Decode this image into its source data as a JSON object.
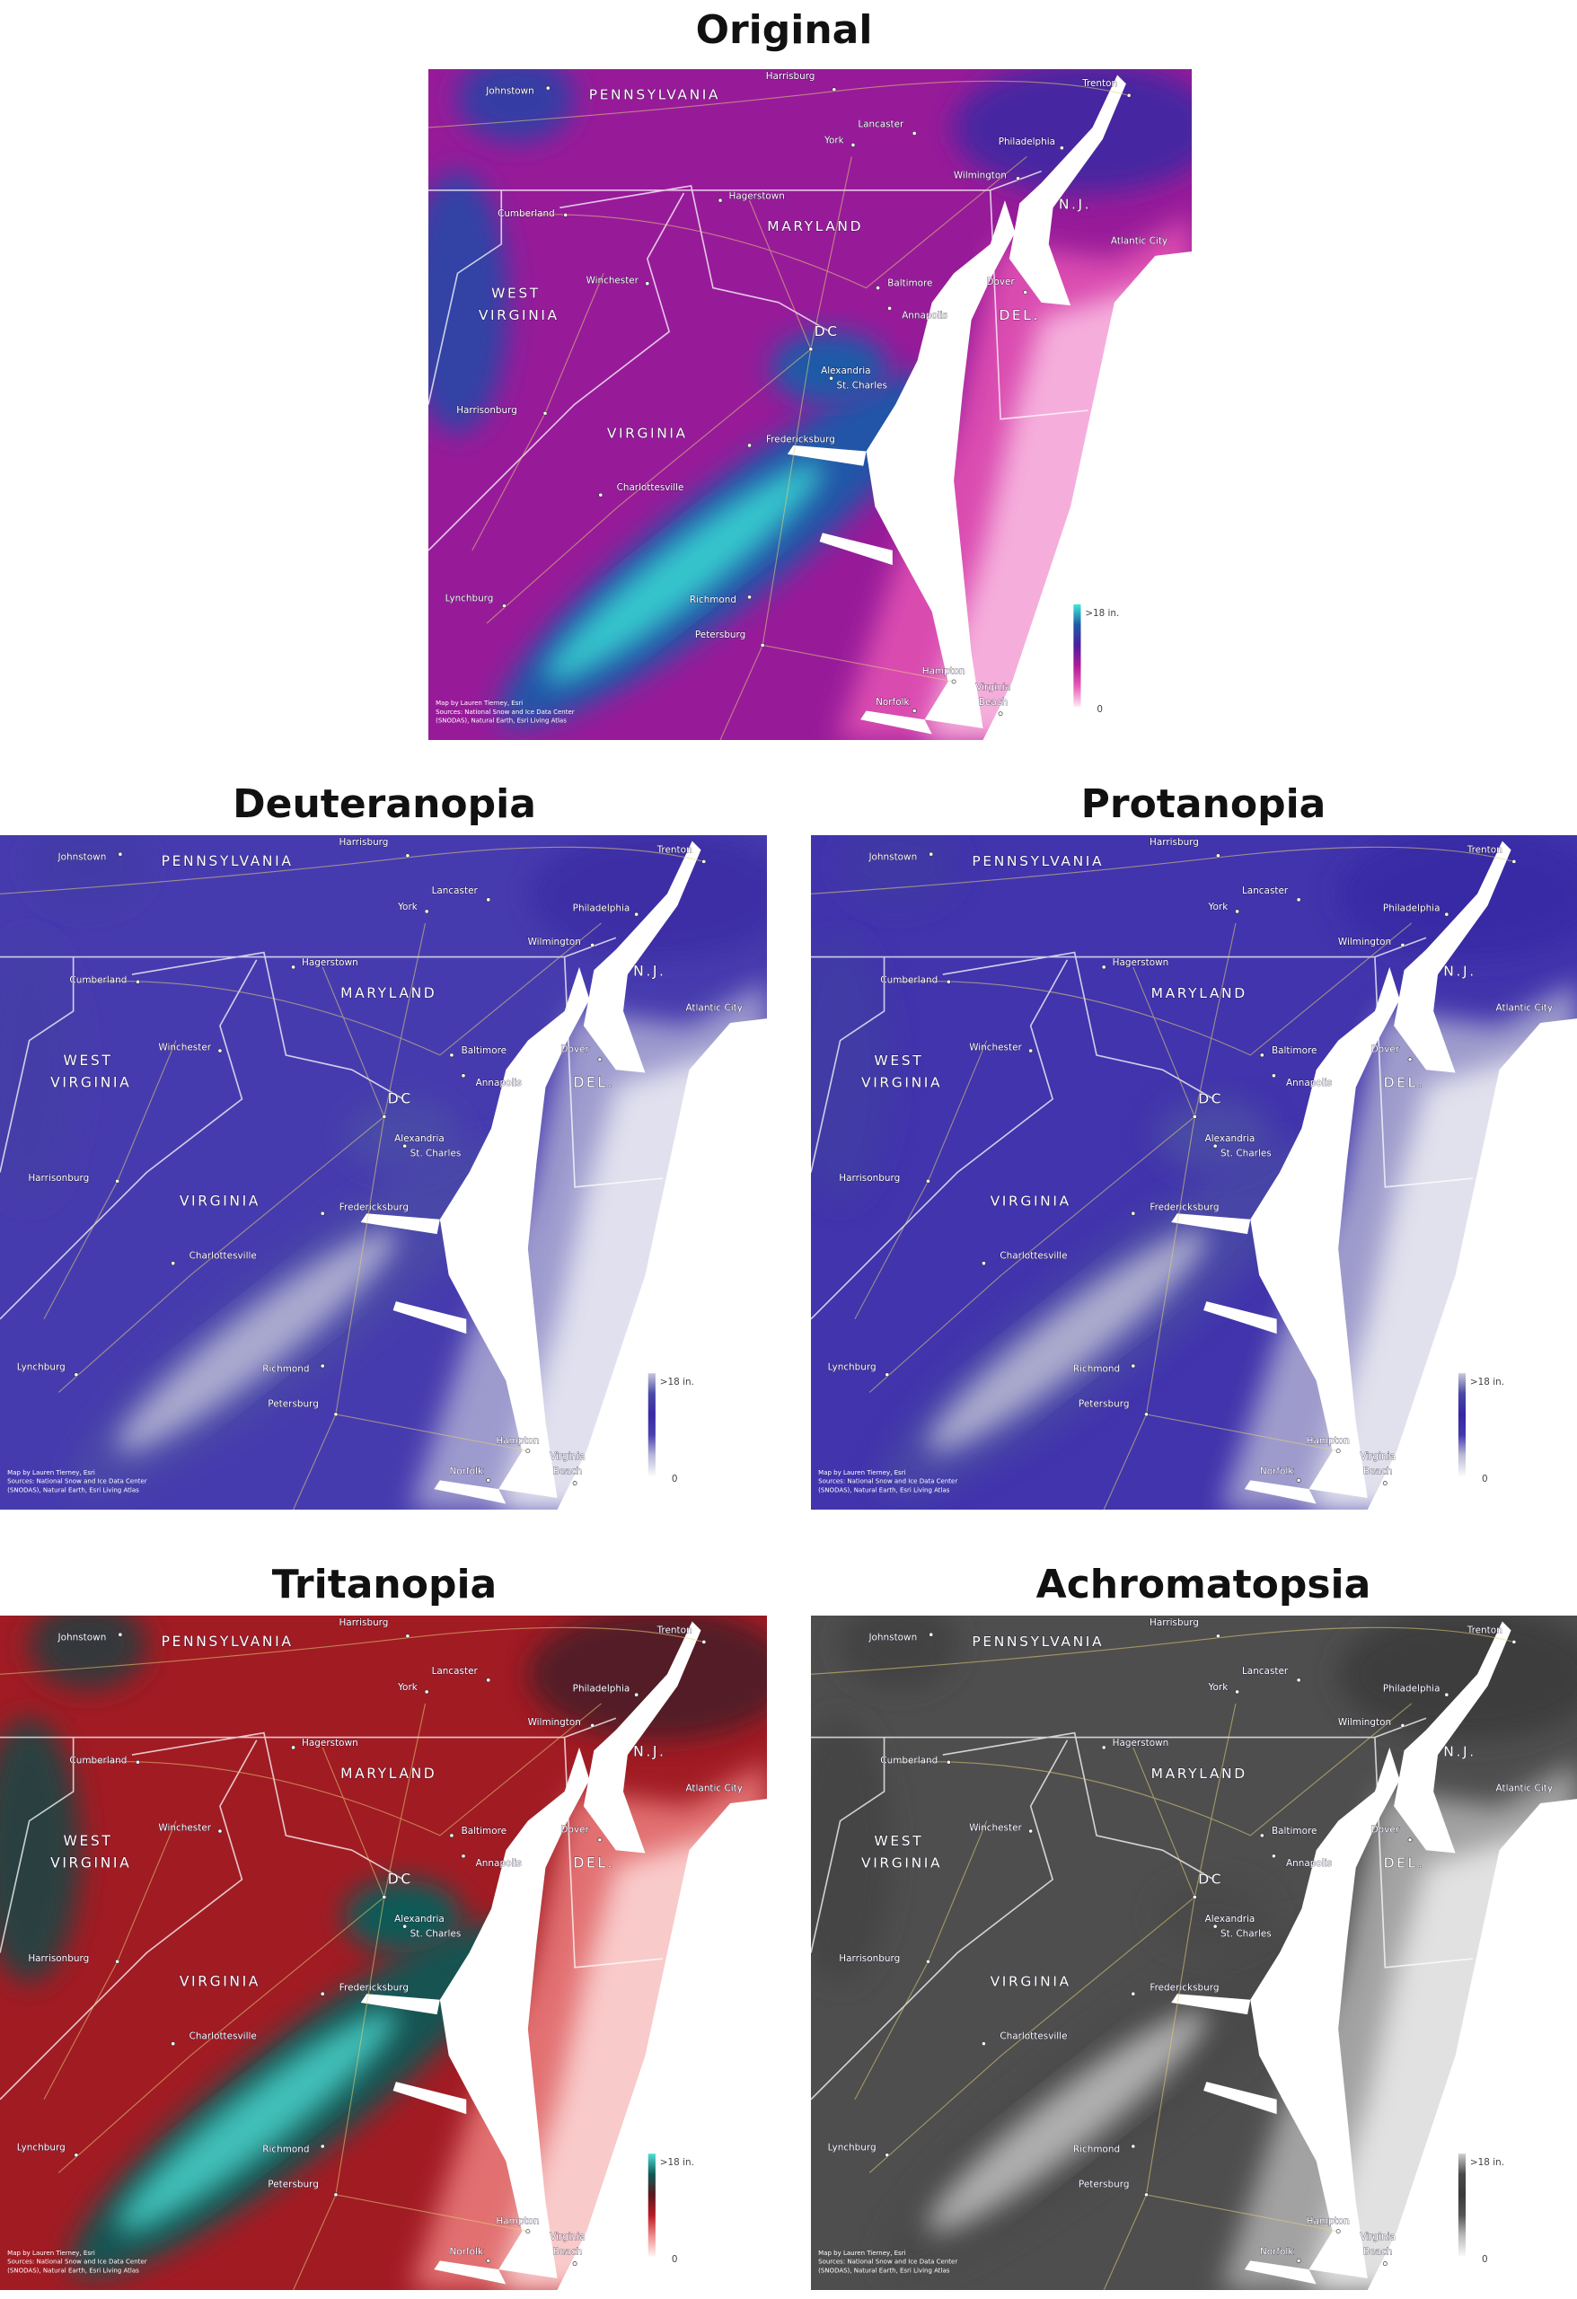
{
  "panels": [
    {
      "title": "Original",
      "colors": [
        "#fde6f4",
        "#e85bb8",
        "#b01a96",
        "#4b1fa0",
        "#1e5aa8",
        "#3ee8d8"
      ]
    },
    {
      "title": "Deuteranopia",
      "colors": [
        "#fafafc",
        "#b8b8d8",
        "#4a40b0",
        "#3a2aa6",
        "#4a4aa8",
        "#c8c8dc"
      ]
    },
    {
      "title": "Protanopia",
      "colors": [
        "#fafafc",
        "#bcbcd6",
        "#4438ae",
        "#3626a4",
        "#4848a6",
        "#cacada"
      ]
    },
    {
      "title": "Tritanopia",
      "colors": [
        "#fff4f4",
        "#f08a8a",
        "#b81c24",
        "#5a1820",
        "#0e5a56",
        "#52e0d8"
      ]
    },
    {
      "title": "Achromatopsia",
      "colors": [
        "#fafafa",
        "#bbbbbb",
        "#555555",
        "#3a3a3a",
        "#4a4a4a",
        "#cfcfcf"
      ]
    }
  ],
  "map": {
    "labels": [
      "Johnstown",
      "PENNSYLVANIA",
      "Harrisburg",
      "Trenton",
      "Lancaster",
      "York",
      "Philadelphia",
      "Wilmington",
      "Hagerstown",
      "Cumberland",
      "MARYLAND",
      "N.J.",
      "Atlantic City",
      "WEST",
      "VIRGINIA",
      "Winchester",
      "Baltimore",
      "Dover",
      "Annapolis",
      "DEL.",
      "DC",
      "Alexandria",
      "St. Charles",
      "Harrisonburg",
      "VIRGINIA",
      "Fredericksburg",
      "Charlottesville",
      "Lynchburg",
      "Richmond",
      "Petersburg",
      "Hampton",
      "Norfolk",
      "Virginia",
      "Beach"
    ],
    "legend": {
      "max": ">18 in.",
      "min": "0"
    },
    "credits": [
      "Map by Lauren Tierney, Esri",
      "Sources: National Snow and Ice Data Center",
      "(SNODAS), Natural Earth, Esri Living Atlas"
    ]
  }
}
